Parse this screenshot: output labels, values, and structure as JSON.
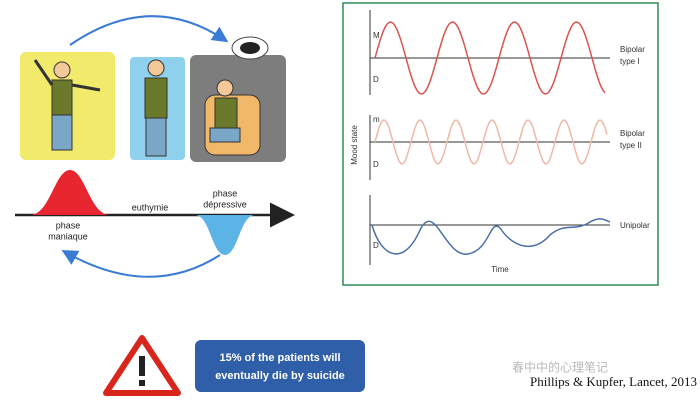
{
  "illustration": {
    "mania_label": [
      "phase",
      "maniaque"
    ],
    "euthymia_label": "euthymie",
    "depression_label": [
      "phase",
      "dépressive"
    ]
  },
  "mood_diagram": {
    "y_axis": "Mood state",
    "x_axis": "Time",
    "rows": [
      {
        "high": "M",
        "low": "D",
        "name": [
          "Bipolar",
          "type I"
        ]
      },
      {
        "high": "m",
        "low": "D",
        "name": [
          "Bipolar",
          "type II"
        ]
      },
      {
        "low": "D",
        "name": [
          "Unipolar"
        ]
      }
    ]
  },
  "warning": {
    "message": [
      "15% of the patients will",
      "eventually die by suicide"
    ]
  },
  "citation": "Phillips & Kupfer, Lancet, 2013",
  "watermark": "春中中的心理笔记"
}
